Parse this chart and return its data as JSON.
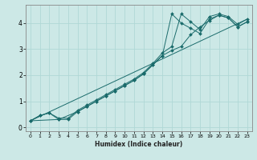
{
  "xlabel": "Humidex (Indice chaleur)",
  "ylabel": "",
  "bg_color": "#cce8e6",
  "grid_color": "#b0d8d6",
  "line_color": "#1a6b6b",
  "spine_color": "#888888",
  "xlim": [
    -0.5,
    23.5
  ],
  "ylim": [
    -0.15,
    4.7
  ],
  "xticks": [
    0,
    1,
    2,
    3,
    4,
    5,
    6,
    7,
    8,
    9,
    10,
    11,
    12,
    13,
    14,
    15,
    16,
    17,
    18,
    19,
    20,
    21,
    22,
    23
  ],
  "yticks": [
    0,
    1,
    2,
    3,
    4
  ],
  "series": [
    {
      "x": [
        0,
        1,
        2,
        3,
        4,
        5,
        6,
        7,
        8,
        9,
        10,
        11,
        12,
        13,
        14,
        15,
        16,
        17,
        18,
        19,
        20,
        21,
        22,
        23
      ],
      "y": [
        0.25,
        0.45,
        0.55,
        0.35,
        0.35,
        0.65,
        0.85,
        1.05,
        1.25,
        1.45,
        1.65,
        1.85,
        2.1,
        2.45,
        2.85,
        3.1,
        4.35,
        4.05,
        3.75,
        4.25,
        4.35,
        4.25,
        3.95,
        4.15
      ]
    },
    {
      "x": [
        0,
        1,
        2,
        3,
        4,
        5,
        6,
        7,
        8,
        9,
        10,
        11,
        12,
        13,
        14,
        15,
        16,
        17,
        18,
        19,
        20,
        21,
        22,
        23
      ],
      "y": [
        0.25,
        0.45,
        0.55,
        0.3,
        0.3,
        0.6,
        0.8,
        1.0,
        1.2,
        1.4,
        1.6,
        1.8,
        2.05,
        2.4,
        2.75,
        4.35,
        4.0,
        3.8,
        3.6,
        4.15,
        4.3,
        4.2,
        3.85,
        4.05
      ]
    },
    {
      "x": [
        0,
        3,
        5,
        6,
        7,
        8,
        9,
        10,
        11,
        12,
        13,
        14,
        15,
        16,
        17,
        18,
        19,
        20,
        21,
        22,
        23
      ],
      "y": [
        0.25,
        0.3,
        0.6,
        0.8,
        1.0,
        1.2,
        1.4,
        1.6,
        1.8,
        2.05,
        2.4,
        2.75,
        2.95,
        3.1,
        3.55,
        3.85,
        4.1,
        4.3,
        4.2,
        3.85,
        4.05
      ]
    },
    {
      "x": [
        0,
        23
      ],
      "y": [
        0.25,
        4.15
      ]
    }
  ]
}
